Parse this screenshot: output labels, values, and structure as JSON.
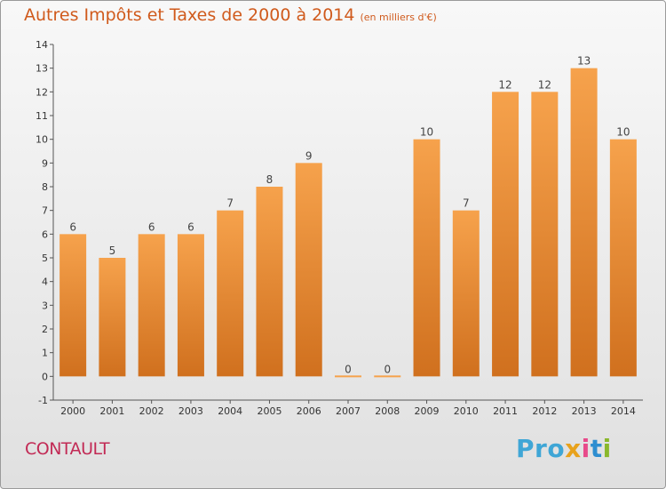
{
  "title": "Autres Impôts et Taxes de 2000 à 2014",
  "title_unit": "(en milliers d'€)",
  "commune": "CONTAULT",
  "brand": {
    "parts": [
      "Pro",
      "x",
      "i",
      "t",
      "i"
    ]
  },
  "colors": {
    "bar_light": "#f6a24c",
    "bar_dark": "#d0701e",
    "title": "#d05a1c",
    "commune": "#c22a55"
  },
  "chart_data": {
    "type": "bar",
    "title": "Autres Impôts et Taxes de 2000 à 2014",
    "subtitle": "(en milliers d'€)",
    "xlabel": "",
    "ylabel": "",
    "categories": [
      "2000",
      "2001",
      "2002",
      "2003",
      "2004",
      "2005",
      "2006",
      "2007",
      "2008",
      "2009",
      "2010",
      "2011",
      "2012",
      "2013",
      "2014"
    ],
    "values": [
      6,
      5,
      6,
      6,
      7,
      8,
      9,
      0,
      0,
      10,
      7,
      12,
      12,
      13,
      10
    ],
    "data_labels": [
      "6",
      "5",
      "6",
      "6",
      "7",
      "8",
      "9",
      "0",
      "0",
      "10",
      "7",
      "12",
      "12",
      "13",
      "10"
    ],
    "ylim": [
      -1,
      14
    ],
    "yticks": [
      -1,
      0,
      1,
      2,
      3,
      4,
      5,
      6,
      7,
      8,
      9,
      10,
      11,
      12,
      13,
      14
    ],
    "ytick_labels": [
      "-1",
      "0",
      "1",
      "2",
      "3",
      "4",
      "5",
      "6",
      "7",
      "8",
      "9",
      "10",
      "11",
      "12",
      "13",
      "14"
    ],
    "grid": false,
    "legend": "none"
  }
}
